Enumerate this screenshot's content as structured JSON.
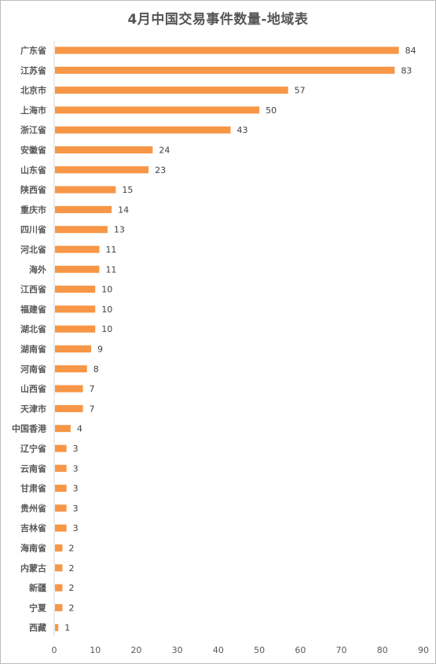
{
  "chart_data": {
    "type": "bar",
    "orientation": "horizontal",
    "title": "4月中国交易事件数量-地域表",
    "categories": [
      "广东省",
      "江苏省",
      "北京市",
      "上海市",
      "浙江省",
      "安徽省",
      "山东省",
      "陕西省",
      "重庆市",
      "四川省",
      "河北省",
      "海外",
      "江西省",
      "福建省",
      "湖北省",
      "湖南省",
      "河南省",
      "山西省",
      "天津市",
      "中国香港",
      "辽宁省",
      "云南省",
      "甘肃省",
      "贵州省",
      "吉林省",
      "海南省",
      "内蒙古",
      "新疆",
      "宁夏",
      "西藏"
    ],
    "values": [
      84,
      83,
      57,
      50,
      43,
      24,
      23,
      15,
      14,
      13,
      11,
      11,
      10,
      10,
      10,
      9,
      8,
      7,
      7,
      4,
      3,
      3,
      3,
      3,
      3,
      2,
      2,
      2,
      2,
      1
    ],
    "xlim": [
      0,
      90
    ],
    "xticks": [
      0,
      10,
      20,
      30,
      40,
      50,
      60,
      70,
      80,
      90
    ],
    "bar_color": "#F79646",
    "data_labels": true,
    "grid": false,
    "legend": "none"
  }
}
